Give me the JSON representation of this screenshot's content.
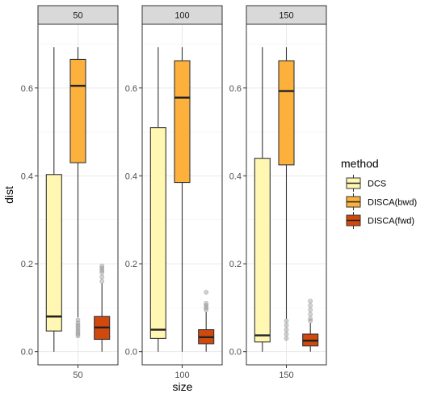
{
  "chart_data": {
    "type": "boxplot",
    "xlabel": "size",
    "ylabel": "dist",
    "ylim": [
      -0.03,
      0.745
    ],
    "yticks": [
      "0.0",
      "0.2",
      "0.4",
      "0.6"
    ],
    "ytick_values": [
      0.0,
      0.2,
      0.4,
      0.6
    ],
    "grid": true,
    "legend": {
      "title": "method",
      "placement": "right",
      "items": [
        {
          "name": "DCS",
          "color": "#FFF7B2"
        },
        {
          "name": "DISCA(bwd)",
          "color": "#FCB13D"
        },
        {
          "name": "DISCA(fwd)",
          "color": "#D1490D"
        }
      ]
    },
    "facets": [
      {
        "label": "50",
        "xtick": "50",
        "boxes": [
          {
            "method": "DCS",
            "min": 0.0,
            "q1": 0.047,
            "median": 0.08,
            "q3": 0.403,
            "max": 0.693,
            "outliers": []
          },
          {
            "method": "DISCA(bwd)",
            "min": 0.078,
            "q1": 0.43,
            "median": 0.605,
            "q3": 0.665,
            "max": 0.693,
            "outliers": [
              0.072,
              0.065,
              0.06,
              0.055,
              0.05,
              0.045,
              0.04,
              0.036
            ]
          },
          {
            "method": "DISCA(fwd)",
            "min": 0.0,
            "q1": 0.028,
            "median": 0.055,
            "q3": 0.08,
            "max": 0.155,
            "outliers": [
              0.16,
              0.17,
              0.18,
              0.185,
              0.19,
              0.195
            ]
          }
        ]
      },
      {
        "label": "100",
        "xtick": "100",
        "boxes": [
          {
            "method": "DCS",
            "min": 0.0,
            "q1": 0.03,
            "median": 0.05,
            "q3": 0.51,
            "max": 0.693,
            "outliers": []
          },
          {
            "method": "DISCA(bwd)",
            "min": 0.0,
            "q1": 0.385,
            "median": 0.578,
            "q3": 0.662,
            "max": 0.693,
            "outliers": []
          },
          {
            "method": "DISCA(fwd)",
            "min": 0.0,
            "q1": 0.018,
            "median": 0.033,
            "q3": 0.05,
            "max": 0.09,
            "outliers": [
              0.095,
              0.1,
              0.105,
              0.11,
              0.135
            ]
          }
        ]
      },
      {
        "label": "150",
        "xtick": "150",
        "boxes": [
          {
            "method": "DCS",
            "min": 0.0,
            "q1": 0.022,
            "median": 0.037,
            "q3": 0.44,
            "max": 0.693,
            "outliers": []
          },
          {
            "method": "DISCA(bwd)",
            "min": 0.075,
            "q1": 0.425,
            "median": 0.593,
            "q3": 0.662,
            "max": 0.693,
            "outliers": [
              0.07,
              0.06,
              0.05,
              0.04,
              0.03
            ]
          },
          {
            "method": "DISCA(fwd)",
            "min": 0.0,
            "q1": 0.013,
            "median": 0.025,
            "q3": 0.04,
            "max": 0.065,
            "outliers": [
              0.07,
              0.075,
              0.085,
              0.095,
              0.105,
              0.115
            ]
          }
        ]
      }
    ]
  }
}
